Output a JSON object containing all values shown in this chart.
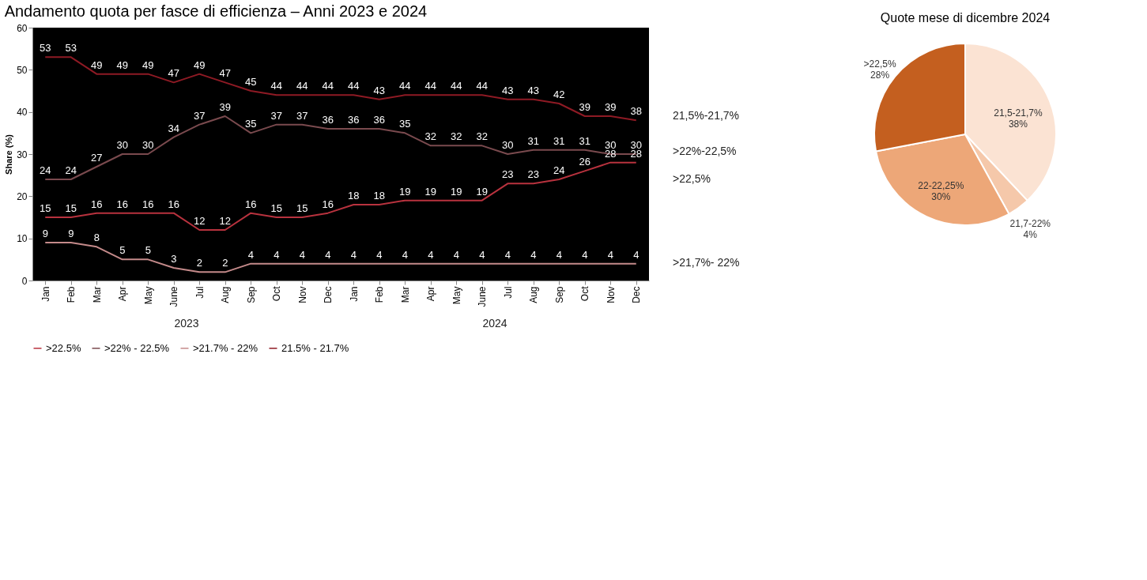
{
  "chart_data": [
    {
      "type": "line",
      "title": "Andamento quota per fasce di efficienza – Anni 2023 e 2024",
      "ylabel": "Share (%)",
      "categories": [
        "Jan",
        "Feb",
        "Mar",
        "Apr",
        "May",
        "June",
        "Jul",
        "Aug",
        "Sep",
        "Oct",
        "Nov",
        "Dec",
        "Jan",
        "Feb",
        "Mar",
        "Apr",
        "May",
        "June",
        "Jul",
        "Aug",
        "Sep",
        "Oct",
        "Nov",
        "Dec"
      ],
      "series": [
        {
          "name": ">22.5%",
          "color": "#b8323e",
          "values": [
            15,
            15,
            16,
            16,
            16,
            16,
            12,
            12,
            16,
            15,
            15,
            16,
            18,
            18,
            19,
            19,
            19,
            19,
            23,
            23,
            24,
            26,
            28,
            28
          ]
        },
        {
          "name": ">22% - 22.5%",
          "color": "#7a4a4e",
          "values": [
            24,
            24,
            27,
            30,
            30,
            34,
            37,
            39,
            35,
            37,
            37,
            36,
            36,
            36,
            35,
            32,
            32,
            32,
            30,
            31,
            31,
            31,
            30,
            30
          ]
        },
        {
          "name": ">21.7% - 22%",
          "color": "#c48a8a",
          "values": [
            9,
            9,
            8,
            5,
            5,
            3,
            2,
            2,
            4,
            4,
            4,
            4,
            4,
            4,
            4,
            4,
            4,
            4,
            4,
            4,
            4,
            4,
            4,
            4
          ]
        },
        {
          "name": "21.5% - 21.7%",
          "color": "#8e1a24",
          "values": [
            53,
            53,
            49,
            49,
            49,
            47,
            49,
            47,
            45,
            44,
            44,
            44,
            44,
            43,
            44,
            44,
            44,
            44,
            43,
            43,
            42,
            39,
            39,
            38
          ]
        }
      ],
      "ylim": [
        0,
        60
      ],
      "yticks": [
        0,
        10,
        20,
        30,
        40,
        50,
        60
      ],
      "grid": false,
      "legend": "bottom",
      "data_labels": true,
      "marker": "none",
      "annotations": [
        "2023",
        "2024",
        "21,5%-21,7%",
        ">22%-22,5%",
        ">22,5%",
        ">21,7%- 22%"
      ]
    },
    {
      "type": "pie",
      "title": "Quote mese di dicembre 2024",
      "categories": [
        "21,5-21,7%",
        "21,7-22%",
        "22-22,25%",
        ">22,5%"
      ],
      "values": [
        38,
        4,
        30,
        28
      ],
      "colors": [
        "#fbe3d3",
        "#f5c8aa",
        "#eda778",
        "#c45f1f"
      ],
      "value_labels": [
        "38%",
        "4%",
        "30%",
        "28%"
      ]
    }
  ]
}
